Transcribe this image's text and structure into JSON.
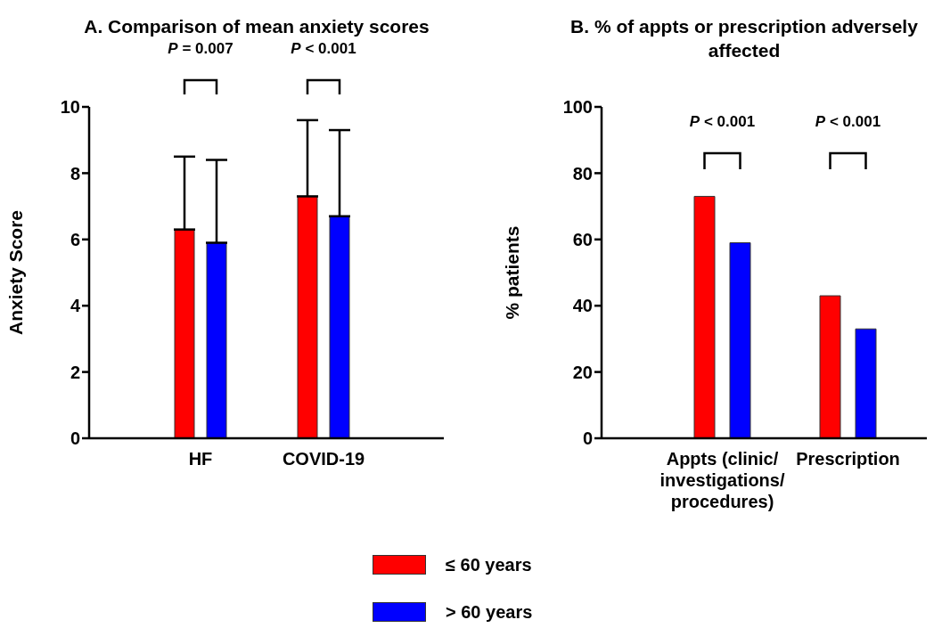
{
  "chart_data": [
    {
      "type": "bar",
      "title": "A. Comparison of mean anxiety scores",
      "ylabel": "Anxiety Score",
      "categories": [
        "HF",
        "COVID-19"
      ],
      "series": [
        {
          "name": "≤ 60 years",
          "color": "#ff0000",
          "values": [
            6.3,
            7.3
          ],
          "errors": [
            [
              6.3,
              8.5
            ],
            [
              7.3,
              9.6
            ]
          ]
        },
        {
          "name": "> 60 years",
          "color": "#0000ff",
          "values": [
            5.9,
            6.7
          ],
          "errors": [
            [
              5.9,
              8.4
            ],
            [
              6.7,
              9.3
            ]
          ]
        }
      ],
      "ylim": [
        0,
        10
      ],
      "yticks": [
        0,
        2,
        4,
        6,
        8,
        10
      ],
      "grid": false,
      "legend": "bottom",
      "annotations": [
        "P = 0.007",
        "P < 0.001"
      ]
    },
    {
      "type": "bar",
      "title": "B. % of appts or prescription adversely affected",
      "ylabel": "% patients",
      "categories": [
        "Appts (clinic/ investigations/ procedures)",
        "Prescription"
      ],
      "series": [
        {
          "name": "≤ 60 years",
          "color": "#ff0000",
          "values": [
            73,
            43
          ]
        },
        {
          "name": "> 60 years",
          "color": "#0000ff",
          "values": [
            59,
            33
          ]
        }
      ],
      "ylim": [
        0,
        100
      ],
      "yticks": [
        0,
        20,
        40,
        60,
        80,
        100
      ],
      "grid": false,
      "legend": "bottom",
      "annotations": [
        "P < 0.001",
        "P < 0.001"
      ]
    }
  ]
}
